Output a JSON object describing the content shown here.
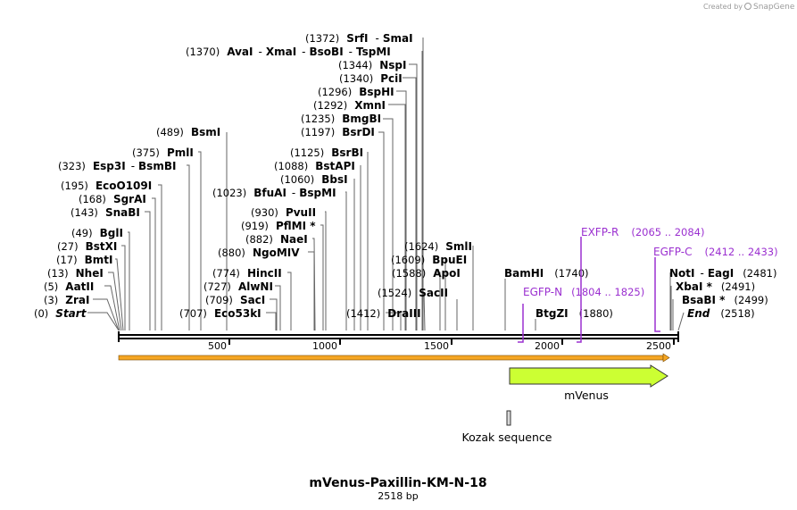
{
  "credit": {
    "prefix": "Created by",
    "brand": "SnapGene"
  },
  "plasmid": {
    "name": "mVenus-Paxillin-KM-N-18",
    "size_label": "2518 bp",
    "length": 2518
  },
  "axis": {
    "ticks": [
      "500",
      "1000",
      "1500",
      "2000",
      "2500"
    ]
  },
  "sites_left": [
    {
      "pos": "(0)",
      "name": "Start",
      "italic": true
    },
    {
      "pos": "(3)",
      "name": "ZraI"
    },
    {
      "pos": "(5)",
      "name": "AatII"
    },
    {
      "pos": "(13)",
      "name": "NheI"
    },
    {
      "pos": "(17)",
      "name": "BmtI"
    },
    {
      "pos": "(27)",
      "name": "BstXI"
    },
    {
      "pos": "(49)",
      "name": "BglI"
    },
    {
      "pos": "(143)",
      "name": "SnaBI"
    },
    {
      "pos": "(168)",
      "name": "SgrAI"
    },
    {
      "pos": "(195)",
      "name": "EcoO109I"
    },
    {
      "pos": "(323)",
      "name": "Esp3I",
      "alt": "-",
      "name2": "BsmBI"
    },
    {
      "pos": "(375)",
      "name": "PmlI"
    },
    {
      "pos": "(489)",
      "name": "BsmI"
    }
  ],
  "sites_mid": [
    {
      "pos": "(707)",
      "name": "Eco53kI"
    },
    {
      "pos": "(709)",
      "name": "SacI"
    },
    {
      "pos": "(727)",
      "name": "AlwNI"
    },
    {
      "pos": "(774)",
      "name": "HincII"
    },
    {
      "pos": "(880)",
      "name": "NgoMIV"
    },
    {
      "pos": "(882)",
      "name": "NaeI"
    },
    {
      "pos": "(919)",
      "name": "PflMI *"
    },
    {
      "pos": "(930)",
      "name": "PvuII"
    },
    {
      "pos": "(1023)",
      "name": "BfuAI",
      "alt": "-",
      "name2": "BspMI"
    },
    {
      "pos": "(1060)",
      "name": "BbsI"
    },
    {
      "pos": "(1088)",
      "name": "BstAPI"
    },
    {
      "pos": "(1125)",
      "name": "BsrBI"
    },
    {
      "pos": "(1197)",
      "name": "BsrDI"
    },
    {
      "pos": "(1235)",
      "name": "BmgBI"
    },
    {
      "pos": "(1292)",
      "name": "XmnI"
    },
    {
      "pos": "(1296)",
      "name": "BspHI"
    },
    {
      "pos": "(1340)",
      "name": "PciI"
    },
    {
      "pos": "(1344)",
      "name": "NspI"
    },
    {
      "pos": "(1370)",
      "name": "AvaI",
      "alt": "-",
      "name2": "XmaI",
      "alt2": "-",
      "name3": "BsoBI",
      "alt3": "-",
      "name4": "TspMI"
    },
    {
      "pos": "(1372)",
      "name": "SrfI",
      "alt": "-",
      "name2": "SmaI"
    }
  ],
  "sites_right": [
    {
      "pos": "(1412)",
      "name": "DraIII"
    },
    {
      "pos": "(1524)",
      "name": "SacII"
    },
    {
      "pos": "(1588)",
      "name": "ApoI"
    },
    {
      "pos": "(1609)",
      "name": "BpuEI"
    },
    {
      "pos": "(1624)",
      "name": "SmlI"
    },
    {
      "name": "BamHI",
      "pos": "(1740)"
    },
    {
      "name": "BtgZI",
      "pos": "(1880)"
    },
    {
      "name": "NotI",
      "alt": "-",
      "name2": "EagI",
      "pos": "(2481)"
    },
    {
      "name": "XbaI *",
      "pos": "(2491)"
    },
    {
      "name": "BsaBI *",
      "pos": "(2499)"
    },
    {
      "name": "End",
      "pos": "(2518)",
      "italic": true
    }
  ],
  "primers": [
    {
      "name": "EGFP-N",
      "range": "(1804 .. 1825)"
    },
    {
      "name": "EXFP-R",
      "range": "(2065 .. 2084)"
    },
    {
      "name": "EGFP-C",
      "range": "(2412 .. 2433)"
    }
  ],
  "features": [
    {
      "name": "mVenus",
      "start": 1763,
      "end": 2480
    },
    {
      "name": "Kozak sequence",
      "start": 1754,
      "end": 1763
    }
  ],
  "colors": {
    "primer": "#9b30d0",
    "mvenus": "#ccff33",
    "orf": "#f5a623",
    "backbone": "#000000"
  }
}
